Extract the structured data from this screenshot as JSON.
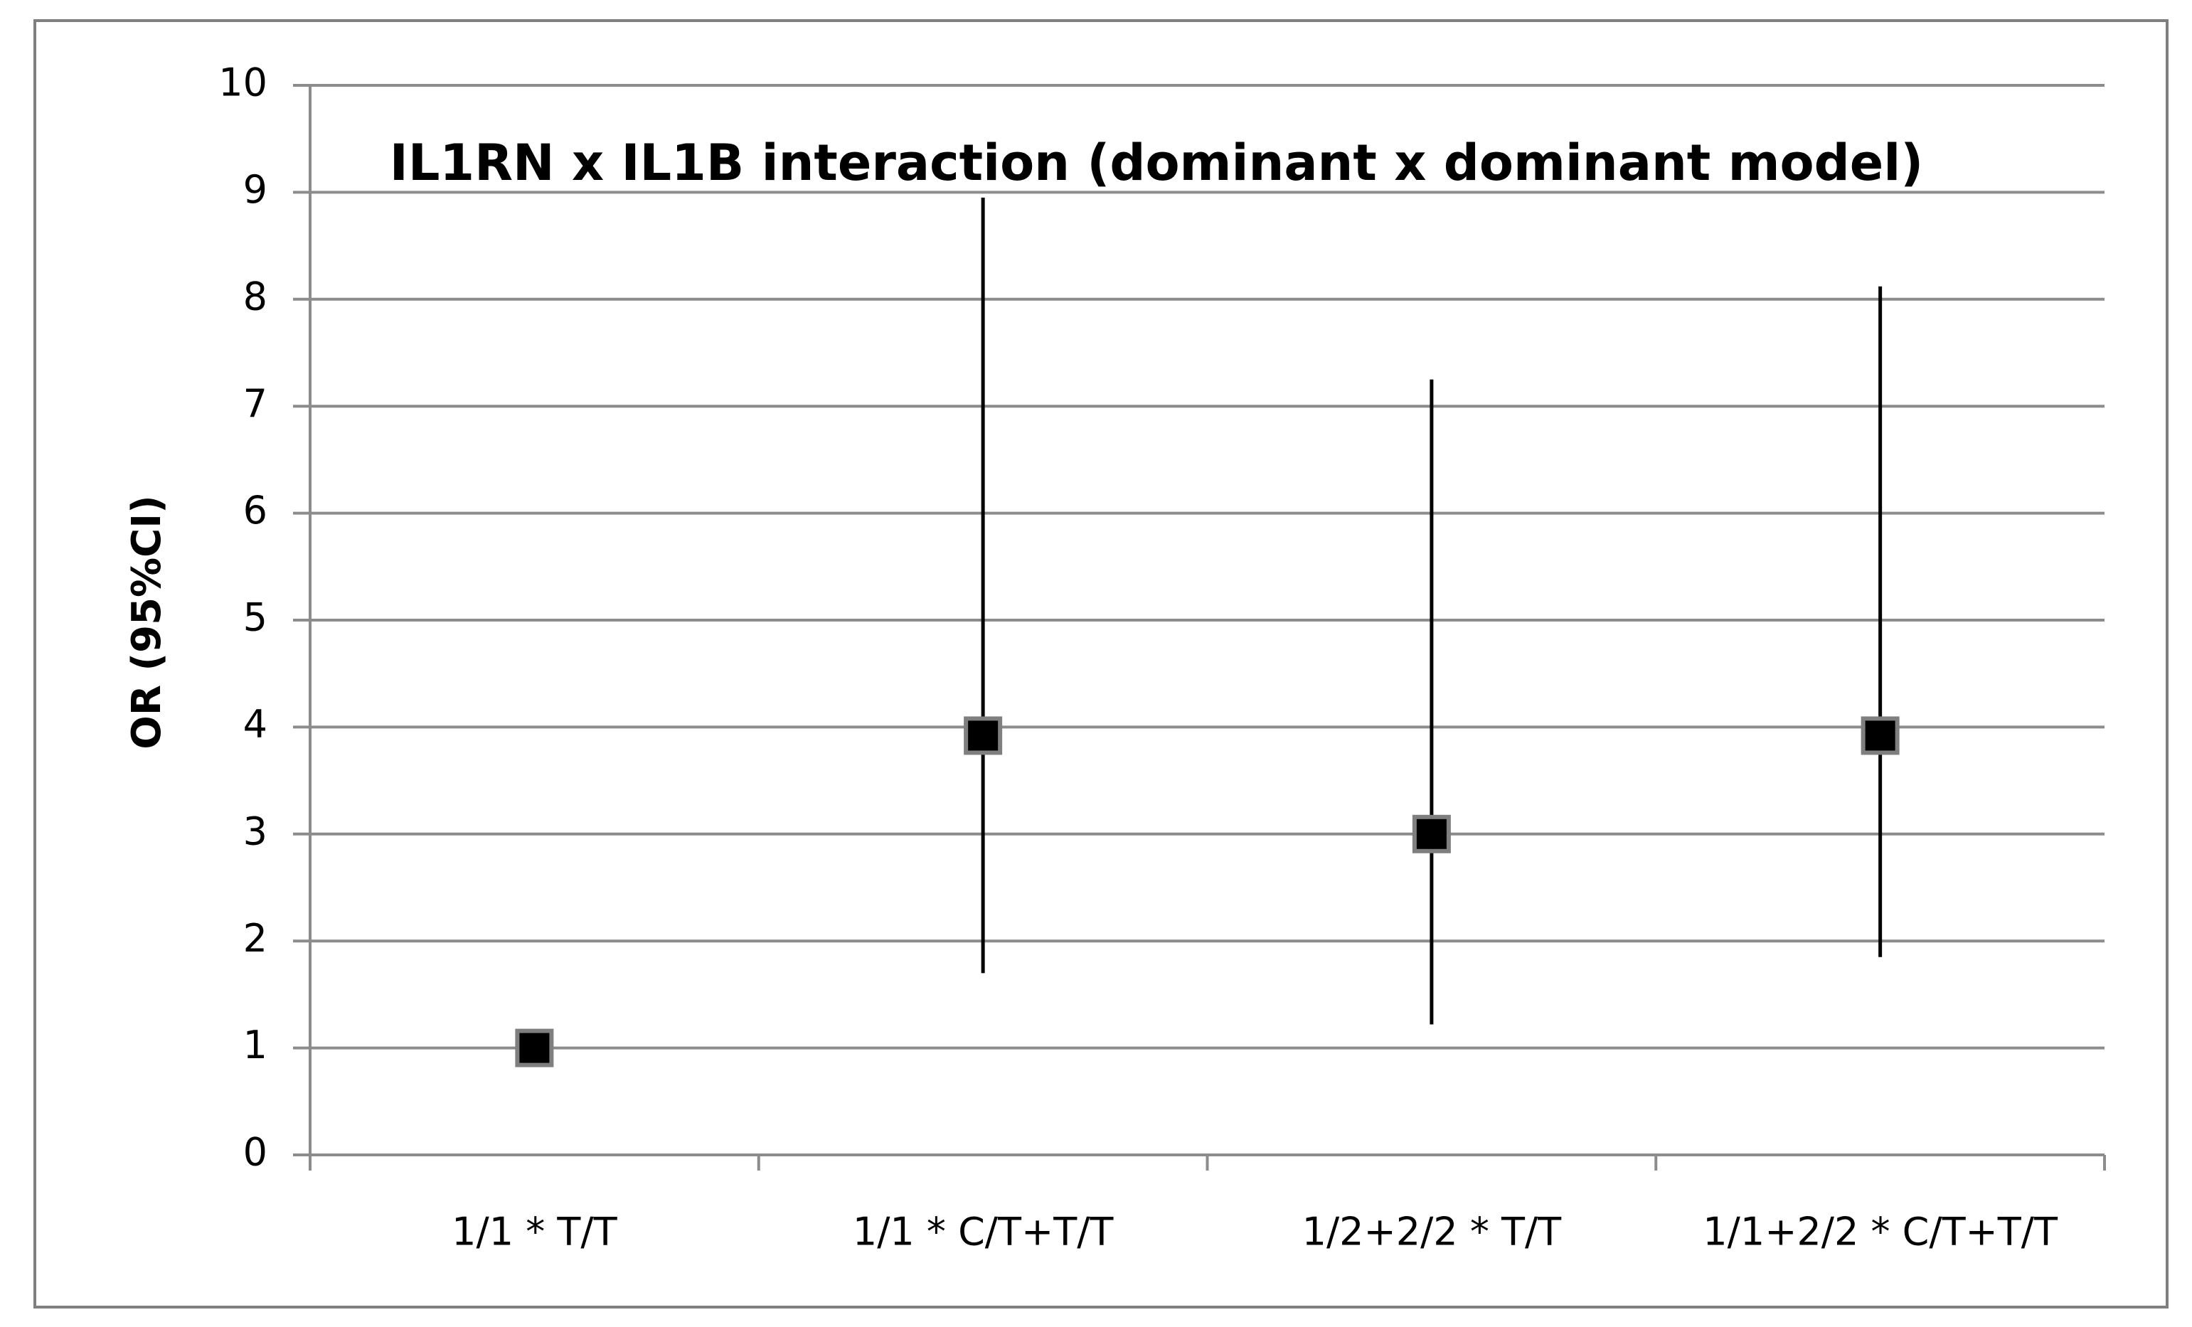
{
  "chart_data": {
    "type": "errorbar",
    "title": "IL1RN x IL1B interaction (dominant x dominant model)",
    "y_label": "OR (95%CI)",
    "categories": [
      "1/1 * T/T",
      "1/1 * C/T+T/T",
      "1/2+2/2 * T/T",
      "1/1+2/2 * C/T+T/T"
    ],
    "values": [
      1,
      3.92,
      3.0,
      3.92
    ],
    "lower": [
      null,
      1.7,
      1.22,
      1.85
    ],
    "upper": [
      null,
      8.95,
      7.25,
      8.12
    ],
    "color": "#000000",
    "ylim": [
      0,
      10
    ],
    "yticks": [
      0,
      1,
      2,
      3,
      4,
      5,
      6,
      7,
      8,
      9,
      10
    ],
    "grid": true
  }
}
